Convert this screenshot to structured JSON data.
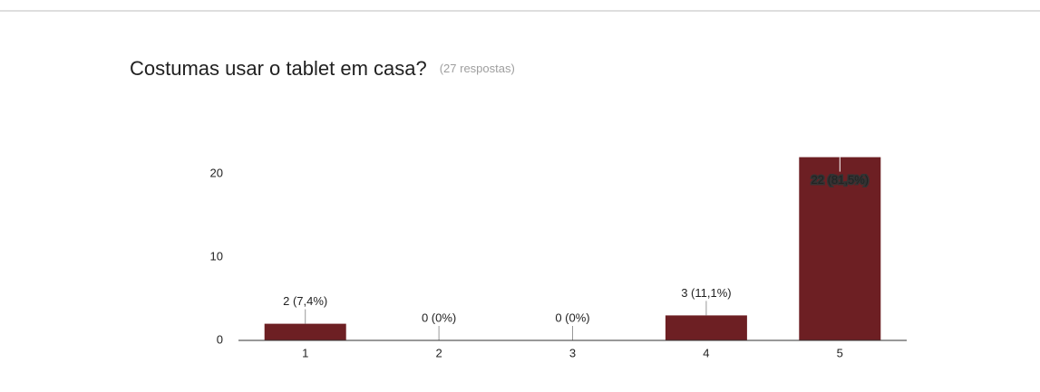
{
  "chart_data": {
    "type": "bar",
    "title": "Costumas usar o tablet em casa?",
    "subtitle": "(27 respostas)",
    "categories": [
      "1",
      "2",
      "3",
      "4",
      "5"
    ],
    "values": [
      2,
      0,
      0,
      3,
      22
    ],
    "value_labels": [
      "2 (7,4%)",
      "0 (0%)",
      "0 (0%)",
      "3 (11,1%)",
      "22 (81,5%)"
    ],
    "color": "#6d1f23",
    "ylim": [
      0,
      22
    ],
    "yticks": [
      0,
      10,
      20
    ],
    "grid": false
  }
}
